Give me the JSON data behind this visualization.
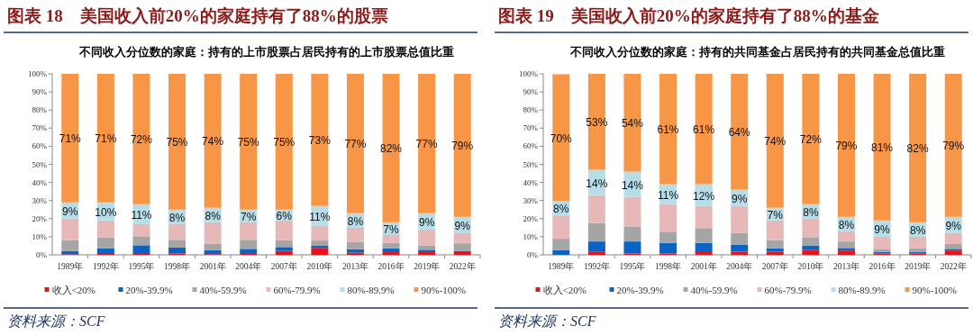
{
  "chart_data": [
    {
      "type": "bar",
      "stacked": true,
      "title": "图表 18　美国收入前20%的家庭持有了88%的股票",
      "subtitle": "不同收入分位数的家庭：持有的上市股票占居民持有的上市股票总值比重",
      "categories": [
        "1989年",
        "1992年",
        "1995年",
        "1998年",
        "2001年",
        "2004年",
        "2007年",
        "2010年",
        "2013年",
        "2016年",
        "2019年",
        "2022年"
      ],
      "series": [
        {
          "name": "收入<20%",
          "color": "#e8141b",
          "values": [
            0.3,
            1,
            1,
            0.8,
            0.4,
            1,
            2.2,
            3.6,
            1.2,
            2,
            1.5,
            1.5
          ]
        },
        {
          "name": "20%-39.9%",
          "color": "#0b63c4",
          "values": [
            1.8,
            2.6,
            4.3,
            3.2,
            2.2,
            2.3,
            2.1,
            1.4,
            1.9,
            1.6,
            1.3,
            0.7
          ]
        },
        {
          "name": "40%-59.9%",
          "color": "#a5a5a5",
          "values": [
            6,
            6.1,
            5,
            4.3,
            3.6,
            5,
            3.8,
            2.9,
            4.1,
            3.1,
            2.4,
            4.2
          ]
        },
        {
          "name": "60%-79.9%",
          "color": "#e6b9b8",
          "values": [
            11.9,
            9.3,
            6.7,
            8.7,
            11.8,
            9.7,
            10.9,
            8.1,
            7.8,
            4.3,
            8.8,
            5.6
          ]
        },
        {
          "name": "80%-89.9%",
          "color": "#b7dde8",
          "values": [
            9,
            10,
            11,
            8,
            8,
            7,
            6,
            11,
            8,
            7,
            9,
            9
          ],
          "value_labels": [
            "9%",
            "10%",
            "11%",
            "8%",
            "8%",
            "7%",
            "6%",
            "11%",
            "8%",
            "7%",
            "9%",
            "9%"
          ]
        },
        {
          "name": "90%-100%",
          "color": "#f79646",
          "values": [
            71,
            71,
            72,
            75,
            74,
            75,
            75,
            73,
            77,
            82,
            77,
            79
          ],
          "value_labels": [
            "71%",
            "71%",
            "72%",
            "75%",
            "74%",
            "75%",
            "75%",
            "73%",
            "77%",
            "82%",
            "77%",
            "79%"
          ]
        }
      ],
      "ylim": [
        0,
        100
      ],
      "yticks": [
        {
          "value": 0,
          "label": "0%"
        },
        {
          "value": 10,
          "label": "10%"
        },
        {
          "value": 20,
          "label": "20%"
        },
        {
          "value": 30,
          "label": "30%"
        },
        {
          "value": 40,
          "label": "40%"
        },
        {
          "value": 50,
          "label": "50%"
        },
        {
          "value": 60,
          "label": "60%"
        },
        {
          "value": 70,
          "label": "70%"
        },
        {
          "value": 80,
          "label": "80%"
        },
        {
          "value": 90,
          "label": "90%"
        },
        {
          "value": 100,
          "label": "100%"
        }
      ],
      "legend": "bottom",
      "grid": false,
      "annotations": [
        "资料来源：SCF"
      ]
    },
    {
      "type": "bar",
      "stacked": true,
      "title": "图表 19　美国收入前20%的家庭持有了88%的基金",
      "subtitle": "不同收入分位数的家庭：持有的共同基金占居民持有的共同基金总值比重",
      "categories": [
        "1989年",
        "1992年",
        "1995年",
        "1998年",
        "2001年",
        "2004年",
        "2007年",
        "2010年",
        "2013年",
        "2016年",
        "2019年",
        "2022年"
      ],
      "series": [
        {
          "name": "收入<20%",
          "color": "#e8141b",
          "values": [
            null,
            1.9,
            0.7,
            0.7,
            2,
            1.7,
            1.7,
            2.6,
            2.4,
            0.7,
            0.7,
            2.4
          ]
        },
        {
          "name": "20%-39.9%",
          "color": "#0b63c4",
          "values": [
            2.7,
            5.5,
            6.7,
            5.9,
            4.6,
            3.8,
            1.9,
            2.6,
            1.4,
            0.9,
            0.9,
            0.9
          ]
        },
        {
          "name": "40%-59.9%",
          "color": "#a5a5a5",
          "values": [
            6.2,
            10.2,
            8.3,
            6.2,
            8.2,
            6.7,
            4.5,
            4.6,
            3.6,
            1.7,
            2,
            2.7
          ]
        },
        {
          "name": "60%-79.9%",
          "color": "#e6b9b8",
          "values": [
            12.9,
            15.4,
            16.3,
            15.2,
            12.2,
            14.8,
            10.9,
            10.2,
            5.6,
            6.7,
            6.4,
            6
          ]
        },
        {
          "name": "80%-89.9%",
          "color": "#b7dde8",
          "values": [
            8,
            14,
            14,
            11,
            12,
            9,
            7,
            8,
            8,
            9,
            8,
            9
          ],
          "value_labels": [
            "8%",
            "14%",
            "14%",
            "11%",
            "12%",
            "9%",
            "7%",
            "8%",
            "8%",
            "9%",
            "8%",
            "9%"
          ]
        },
        {
          "name": "90%-100%",
          "color": "#f79646",
          "values": [
            70,
            53,
            54,
            61,
            61,
            64,
            74,
            72,
            79,
            81,
            82,
            79
          ],
          "value_labels": [
            "70%",
            "53%",
            "54%",
            "61%",
            "61%",
            "64%",
            "74%",
            "72%",
            "79%",
            "81%",
            "82%",
            "79%"
          ]
        }
      ],
      "ylim": [
        0,
        100
      ],
      "yticks": [
        {
          "value": 0,
          "label": "0%"
        },
        {
          "value": 10,
          "label": "10%"
        },
        {
          "value": 20,
          "label": "20%"
        },
        {
          "value": 30,
          "label": "30%"
        },
        {
          "value": 40,
          "label": "40%"
        },
        {
          "value": 50,
          "label": "50%"
        },
        {
          "value": 60,
          "label": "60%"
        },
        {
          "value": 70,
          "label": "70%"
        },
        {
          "value": 80,
          "label": "80%"
        },
        {
          "value": 90,
          "label": "90%"
        },
        {
          "value": 100,
          "label": "100%"
        }
      ],
      "legend": "bottom",
      "grid": false,
      "annotations": [
        "资料来源：SCF"
      ]
    }
  ]
}
